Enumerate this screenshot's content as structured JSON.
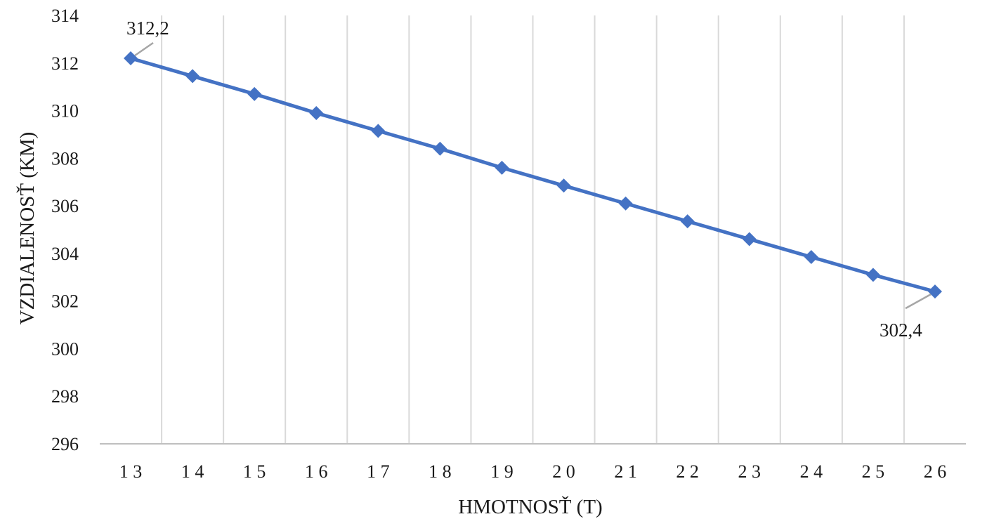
{
  "chart_data": {
    "type": "line",
    "title": "",
    "xlabel": "HMOTNOSŤ (T)",
    "ylabel": "VZDIALENOSŤ  (KM)",
    "categories": [
      "1 3",
      "1 4",
      "1 5",
      "1 6",
      "1 7",
      "1 8",
      "1 9",
      "2 0",
      "2 1",
      "2 2",
      "2 3",
      "2 4",
      "2 5",
      "2 6"
    ],
    "x": [
      13,
      14,
      15,
      16,
      17,
      18,
      19,
      20,
      21,
      22,
      23,
      24,
      25,
      26
    ],
    "series": [
      {
        "values": [
          312.2,
          311.45,
          310.7,
          309.9,
          309.15,
          308.4,
          307.6,
          306.85,
          306.1,
          305.35,
          304.6,
          303.85,
          303.1,
          302.4
        ],
        "color": "#4472c4",
        "marker": "diamond"
      }
    ],
    "ylim": [
      296,
      314
    ],
    "yticks": [
      "296",
      "298",
      "300",
      "302",
      "304",
      "306",
      "308",
      "310",
      "312",
      "314"
    ],
    "ytick_values": [
      296,
      298,
      300,
      302,
      304,
      306,
      308,
      310,
      312,
      314
    ],
    "data_labels": [
      {
        "index": 0,
        "text": "312,2"
      },
      {
        "index": 13,
        "text": "302,4"
      }
    ],
    "grid": "vertical",
    "legend": "none",
    "gridline_color": "#d9d9d9",
    "axis_color": "#bfbfbf",
    "leader_color": "#a6a6a6"
  }
}
